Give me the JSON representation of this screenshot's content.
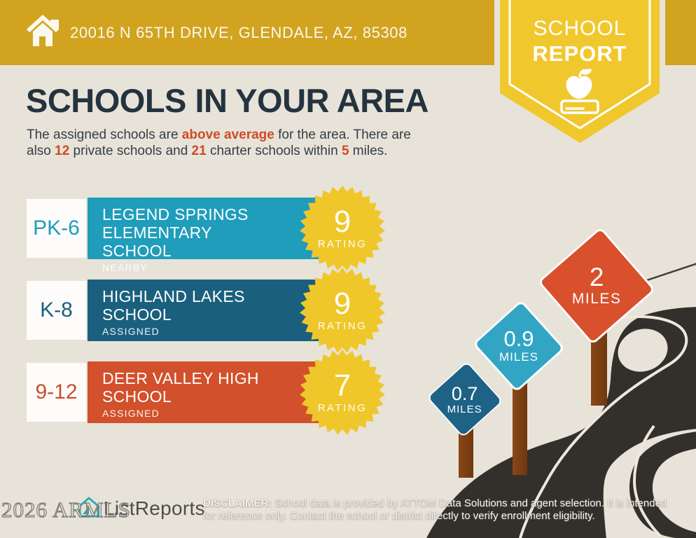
{
  "header": {
    "address": "20016 N 65TH DRIVE, GLENDALE, AZ, 85308",
    "badge": {
      "line1": "SCHOOL",
      "line2": "REPORT"
    }
  },
  "main": {
    "title": "SCHOOLS IN YOUR AREA",
    "intro": {
      "s1": "The assigned schools are ",
      "em1": "above average",
      "s2": " for the area. There are",
      "s3": "also ",
      "em2": "12",
      "s4": " private schools and ",
      "em3": "21",
      "s5": " charter schools within ",
      "em4": "5",
      "s6": " miles."
    }
  },
  "schools": [
    {
      "grade": "PK-6",
      "name": "LEGEND SPRINGS ELEMENTARY SCHOOL",
      "status": "NEARBY",
      "rating": "9",
      "rating_label": "RATING",
      "color": "#1F9DBB"
    },
    {
      "grade": "K-8",
      "name": "HIGHLAND LAKES SCHOOL",
      "status": "ASSIGNED",
      "rating": "9",
      "rating_label": "RATING",
      "color": "#1A607E"
    },
    {
      "grade": "9-12",
      "name": "DEER VALLEY HIGH SCHOOL",
      "status": "ASSIGNED",
      "rating": "7",
      "rating_label": "RATING",
      "color": "#D2502B"
    }
  ],
  "signs": [
    {
      "distance": "0.7",
      "unit": "MILES",
      "color": "#1E6386"
    },
    {
      "distance": "0.9",
      "unit": "MILES",
      "color": "#32A5C5"
    },
    {
      "distance": "2",
      "unit": "MILES",
      "color": "#D8502C"
    }
  ],
  "footer": {
    "logo_text": "ListReports",
    "watermark": "2026 ARMLS",
    "disclaimer_label": "DISCLAIMER:",
    "disclaimer_line1": " School data is provided by ATTOM Data Solutions and agent selection. It is intended",
    "disclaimer_line2": "for reference only. Contact the school or district directly to verify enrollment eligibility."
  },
  "colors": {
    "header_gold": "#D1A31F",
    "ribbon_yellow": "#F1C72E",
    "starburst_yellow": "#EFC72B",
    "background_beige": "#E8E3D8",
    "title_navy": "#24333F",
    "highlight_orange": "#CE4B28",
    "road_dark": "#33302C",
    "post_brown": "#7A3E12"
  }
}
